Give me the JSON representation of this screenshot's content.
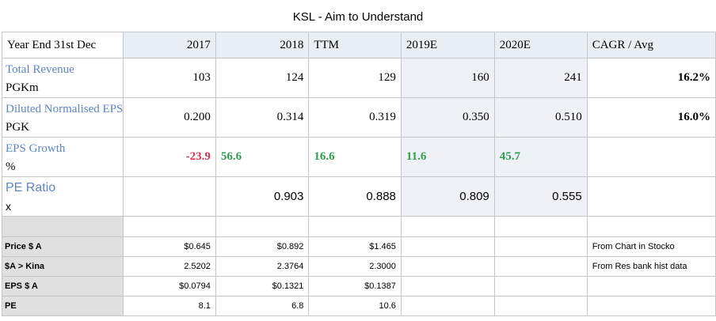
{
  "title": "KSL - Aim to Understand",
  "header": {
    "label": "Year End 31st Dec",
    "c2017": "2017",
    "c2018": "2018",
    "cttm": "TTM",
    "c2019e": "2019E",
    "c2020e": "2020E",
    "ccagr": "CAGR / Avg"
  },
  "rows": {
    "revenue": {
      "name": "Total Revenue",
      "unit": "PGKm",
      "v2017": "103",
      "v2018": "124",
      "vttm": "129",
      "v2019e": "160",
      "v2020e": "241",
      "cagr": "16.2%"
    },
    "eps": {
      "name": "Diluted Normalised EPS",
      "unit": "PGK",
      "v2017": "0.200",
      "v2018": "0.314",
      "vttm": "0.319",
      "v2019e": "0.350",
      "v2020e": "0.510",
      "cagr": "16.0%"
    },
    "growth": {
      "name": "EPS Growth",
      "unit": "%",
      "v2017": "-23.9",
      "v2018": "56.6",
      "vttm": "16.6",
      "v2019e": "11.6",
      "v2020e": "45.7"
    },
    "pe": {
      "name": "PE Ratio",
      "unit": "x",
      "v2018": "0.903",
      "vttm": "0.888",
      "v2019e": "0.809",
      "v2020e": "0.555"
    }
  },
  "small": {
    "price": {
      "label": "Price $ A",
      "v2017": "$0.645",
      "v2018": "$0.892",
      "vttm": "$1.465",
      "note": "From Chart in Stocko"
    },
    "fx": {
      "label": "$A > Kina",
      "v2017": "2.5202",
      "v2018": "2.3764",
      "vttm": "2.3000",
      "note": "From Res bank hist data"
    },
    "epsa": {
      "label": "EPS $ A",
      "v2017": "$0.0794",
      "v2018": "$0.1321",
      "vttm": "$0.1387"
    },
    "pe": {
      "label": "PE",
      "v2017": "8.1",
      "v2018": "6.8",
      "vttm": "10.6"
    }
  },
  "colors": {
    "label_blue": "#5b86c5",
    "negative": "#e0344e",
    "positive": "#2f9e50",
    "header_bg": "#e9eef5",
    "label_gray": "#e0e0e0"
  }
}
